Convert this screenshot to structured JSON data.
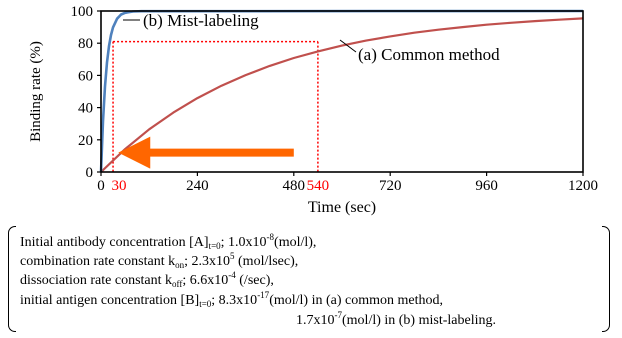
{
  "chart_data": {
    "type": "line",
    "xlabel": "Time (sec)",
    "ylabel": "Binding rate (%)",
    "xlim": [
      0,
      1200
    ],
    "ylim": [
      0,
      100
    ],
    "xticks": [
      0,
      240,
      480,
      720,
      960,
      1200
    ],
    "xticks_highlight": [
      30,
      540
    ],
    "yticks": [
      0,
      20,
      40,
      60,
      80,
      100
    ],
    "grid": false,
    "series": [
      {
        "name": "(a) Common method",
        "color": "#c0504d",
        "x": [
          0,
          60,
          120,
          180,
          240,
          300,
          360,
          420,
          480,
          540,
          600,
          660,
          720,
          780,
          840,
          900,
          960,
          1020,
          1080,
          1140,
          1200
        ],
        "y": [
          0,
          14.2,
          26.5,
          36.9,
          45.9,
          53.6,
          60.2,
          65.9,
          70.8,
          74.9,
          78.5,
          81.6,
          84.2,
          86.5,
          88.4,
          90.0,
          91.5,
          92.7,
          93.7,
          94.6,
          95.4
        ]
      },
      {
        "name": "(b) Mist-labeling",
        "color": "#4f81bd",
        "x": [
          0,
          5,
          10,
          15,
          20,
          25,
          30,
          40,
          50,
          60,
          80,
          100,
          1200
        ],
        "y": [
          0,
          31.6,
          53.2,
          68.1,
          78.2,
          85.1,
          89.8,
          95.2,
          97.8,
          98.9,
          99.7,
          99.9,
          100
        ]
      }
    ],
    "reference_lines": [
      {
        "color": "#ff0000",
        "style": "dotted",
        "y": 81,
        "x_from": 30,
        "x_to": 540
      }
    ],
    "arrow": {
      "color": "#ff6600",
      "from_x": 480,
      "to_x": 30,
      "y": 12
    }
  },
  "note": {
    "line1": {
      "prefix": "Initial antibody concentration [A]",
      "sub": "t=0",
      "mid": "; 1.0x10",
      "sup": "-8",
      "suffix": "(mol/l),"
    },
    "line2": {
      "prefix": "combination rate constant k",
      "sub": "on",
      "mid": "; 2.3x10",
      "sup": "5",
      "suffix": " (mol/lsec),"
    },
    "line3": {
      "prefix": "dissociation rate constant k",
      "sub": "off",
      "mid": "; 6.6x10",
      "sup": "-4",
      "suffix": " (/sec),"
    },
    "line4": {
      "prefix": "initial antigen concentration [B]",
      "sub": "t=0",
      "mid": "; 8.3x10",
      "sup": "-17",
      "suffix": "(mol/l) in (a) common method,"
    },
    "line5": {
      "mid": "1.7x10",
      "sup": "-7",
      "suffix": "(mol/l) in (b) mist-labeling."
    }
  }
}
